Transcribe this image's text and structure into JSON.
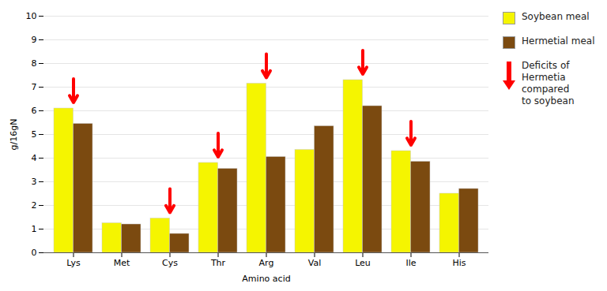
{
  "chart_data": {
    "type": "bar",
    "categories": [
      "Lys",
      "Met",
      "Cys",
      "Thr",
      "Arg",
      "Val",
      "Leu",
      "Ile",
      "His"
    ],
    "series": [
      {
        "name": "Soybean meal",
        "color": "#F5F500",
        "values": [
          6.1,
          1.25,
          1.45,
          3.8,
          7.15,
          4.35,
          7.3,
          4.3,
          2.5
        ]
      },
      {
        "name": "Hermetial meal",
        "color": "#7B4A10",
        "values": [
          5.45,
          1.2,
          0.8,
          3.55,
          4.05,
          5.35,
          6.2,
          3.85,
          2.7
        ]
      }
    ],
    "arrows": {
      "categories": [
        "Lys",
        "Cys",
        "Thr",
        "Arg",
        "Leu",
        "Ile"
      ],
      "color": "red",
      "label": "Deficits of\nHermetia\ncompared\nto soybean"
    },
    "xlabel": "Amino acid",
    "ylabel": "g/16gN",
    "ylim": [
      0,
      10
    ],
    "yticks": [
      0,
      1,
      2,
      3,
      4,
      5,
      6,
      7,
      8,
      9,
      10
    ],
    "grid": true,
    "legend": "right"
  }
}
